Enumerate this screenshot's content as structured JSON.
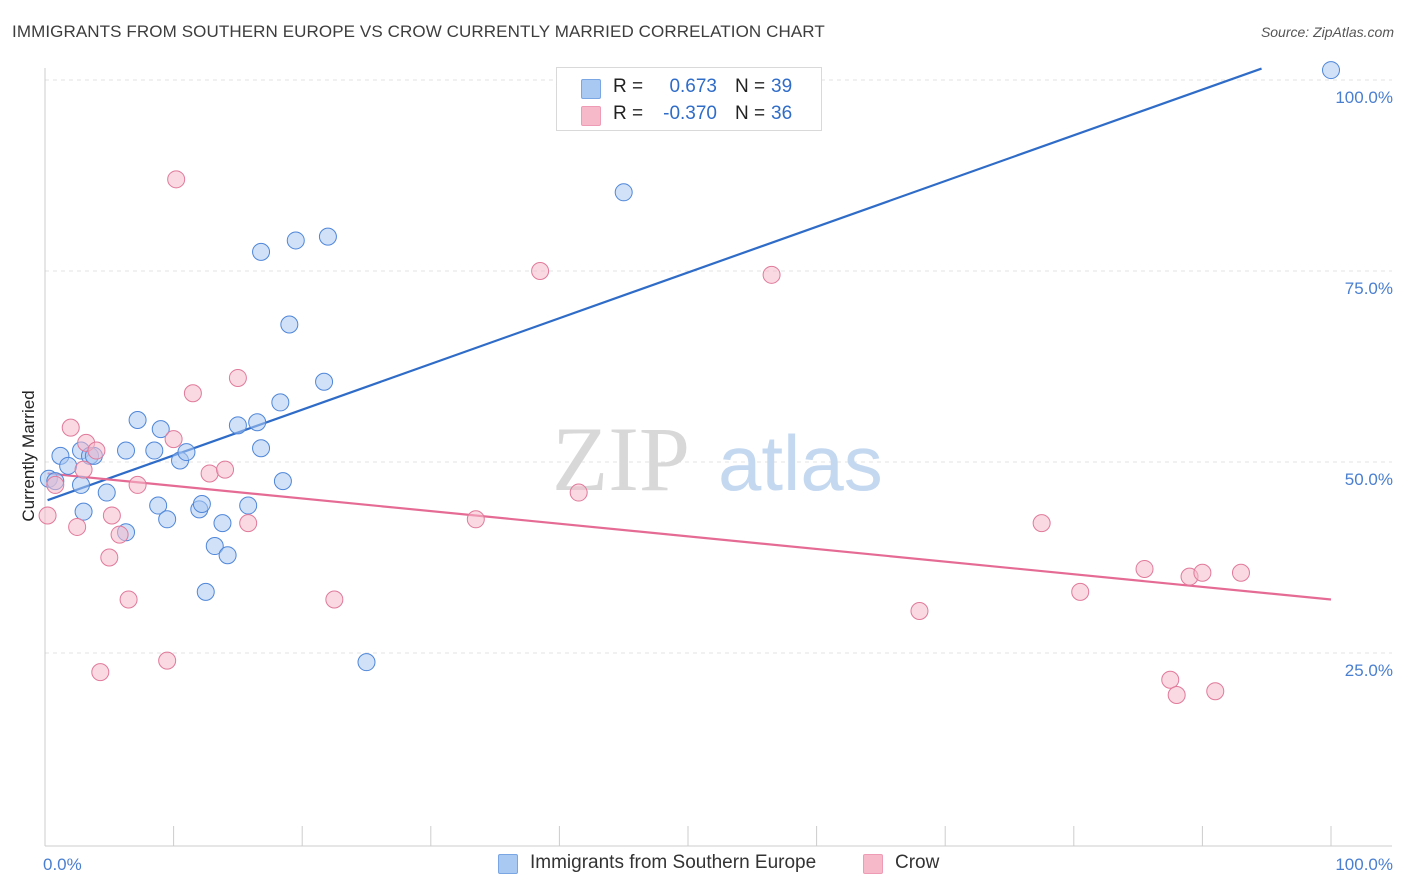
{
  "header": {
    "title": "IMMIGRANTS FROM SOUTHERN EUROPE VS CROW CURRENTLY MARRIED CORRELATION CHART",
    "source": "Source: ZipAtlas.com"
  },
  "watermark": {
    "zip": "ZIP",
    "atlas": "atlas"
  },
  "legend": {
    "rows": [
      {
        "r_label": "R =",
        "r_value": "0.673",
        "n_label": "N =",
        "n_value": "39",
        "color": "#a9c8f2"
      },
      {
        "r_label": "R =",
        "r_value": "-0.370",
        "n_label": "N =",
        "n_value": "36",
        "color": "#f6b9ca"
      }
    ]
  },
  "bottom_legend": {
    "items": [
      {
        "label": "Immigrants from Southern Europe",
        "color": "#a9c8f2"
      },
      {
        "label": "Crow",
        "color": "#f6b9ca"
      }
    ]
  },
  "chart_data": {
    "type": "scatter",
    "title": "IMMIGRANTS FROM SOUTHERN EUROPE VS CROW CURRENTLY MARRIED CORRELATION CHART",
    "xlabel": "",
    "ylabel": "Currently Married",
    "xlim": [
      0,
      100
    ],
    "ylim": [
      0,
      102
    ],
    "x_tick_labels": [
      "0.0%",
      "100.0%"
    ],
    "y_ticks": [
      25,
      50,
      75,
      100
    ],
    "y_tick_labels": [
      "25.0%",
      "50.0%",
      "75.0%",
      "100.0%"
    ],
    "grid": true,
    "series": [
      {
        "name": "Immigrants from Southern Europe",
        "color": "#4f86d9",
        "fill": "#a9c8f2",
        "line_color": "#2f6cc8",
        "trend": {
          "x": [
            0.2,
            94.6
          ],
          "y": [
            45.0,
            101.5
          ]
        },
        "points": [
          [
            0.3,
            47.8
          ],
          [
            0.8,
            47.5
          ],
          [
            1.2,
            50.8
          ],
          [
            1.8,
            49.5
          ],
          [
            2.8,
            51.5
          ],
          [
            3.5,
            50.8
          ],
          [
            3.8,
            50.8
          ],
          [
            2.8,
            47.0
          ],
          [
            4.8,
            46.0
          ],
          [
            3.0,
            43.5
          ],
          [
            6.3,
            51.5
          ],
          [
            7.2,
            55.5
          ],
          [
            8.5,
            51.5
          ],
          [
            9.0,
            54.3
          ],
          [
            8.8,
            44.3
          ],
          [
            6.3,
            40.8
          ],
          [
            9.5,
            42.5
          ],
          [
            10.5,
            50.2
          ],
          [
            11.0,
            51.3
          ],
          [
            12.0,
            43.8
          ],
          [
            12.2,
            44.5
          ],
          [
            13.2,
            39.0
          ],
          [
            13.8,
            42.0
          ],
          [
            12.5,
            33.0
          ],
          [
            14.2,
            37.8
          ],
          [
            15.0,
            54.8
          ],
          [
            16.5,
            55.2
          ],
          [
            15.8,
            44.3
          ],
          [
            16.8,
            77.5
          ],
          [
            18.3,
            57.8
          ],
          [
            16.8,
            51.8
          ],
          [
            18.5,
            47.5
          ],
          [
            19.0,
            68.0
          ],
          [
            19.5,
            79.0
          ],
          [
            21.7,
            60.5
          ],
          [
            22.0,
            79.5
          ],
          [
            25.0,
            23.8
          ],
          [
            45.0,
            85.3
          ],
          [
            100.0,
            101.3
          ]
        ]
      },
      {
        "name": "Crow",
        "color": "#e07a9b",
        "fill": "#f6b9ca",
        "line_color": "#e56b95",
        "trend": {
          "x": [
            0.2,
            100.0
          ],
          "y": [
            48.5,
            32.0
          ]
        },
        "points": [
          [
            0.2,
            43.0
          ],
          [
            0.8,
            47.0
          ],
          [
            2.0,
            54.5
          ],
          [
            2.5,
            41.5
          ],
          [
            3.0,
            49.0
          ],
          [
            3.2,
            52.5
          ],
          [
            4.0,
            51.5
          ],
          [
            4.3,
            22.5
          ],
          [
            5.0,
            37.5
          ],
          [
            5.2,
            43.0
          ],
          [
            5.8,
            40.5
          ],
          [
            6.5,
            32.0
          ],
          [
            7.2,
            47.0
          ],
          [
            9.5,
            24.0
          ],
          [
            10.2,
            87.0
          ],
          [
            10.0,
            53.0
          ],
          [
            11.5,
            59.0
          ],
          [
            12.8,
            48.5
          ],
          [
            14.0,
            49.0
          ],
          [
            15.0,
            61.0
          ],
          [
            15.8,
            42.0
          ],
          [
            22.5,
            32.0
          ],
          [
            38.5,
            75.0
          ],
          [
            41.5,
            46.0
          ],
          [
            33.5,
            42.5
          ],
          [
            56.5,
            74.5
          ],
          [
            68.0,
            30.5
          ],
          [
            77.5,
            42.0
          ],
          [
            80.5,
            33.0
          ],
          [
            85.5,
            36.0
          ],
          [
            87.5,
            21.5
          ],
          [
            88.0,
            19.5
          ],
          [
            89.0,
            35.0
          ],
          [
            90.0,
            35.5
          ],
          [
            91.0,
            20.0
          ],
          [
            93.0,
            35.5
          ]
        ]
      }
    ]
  }
}
